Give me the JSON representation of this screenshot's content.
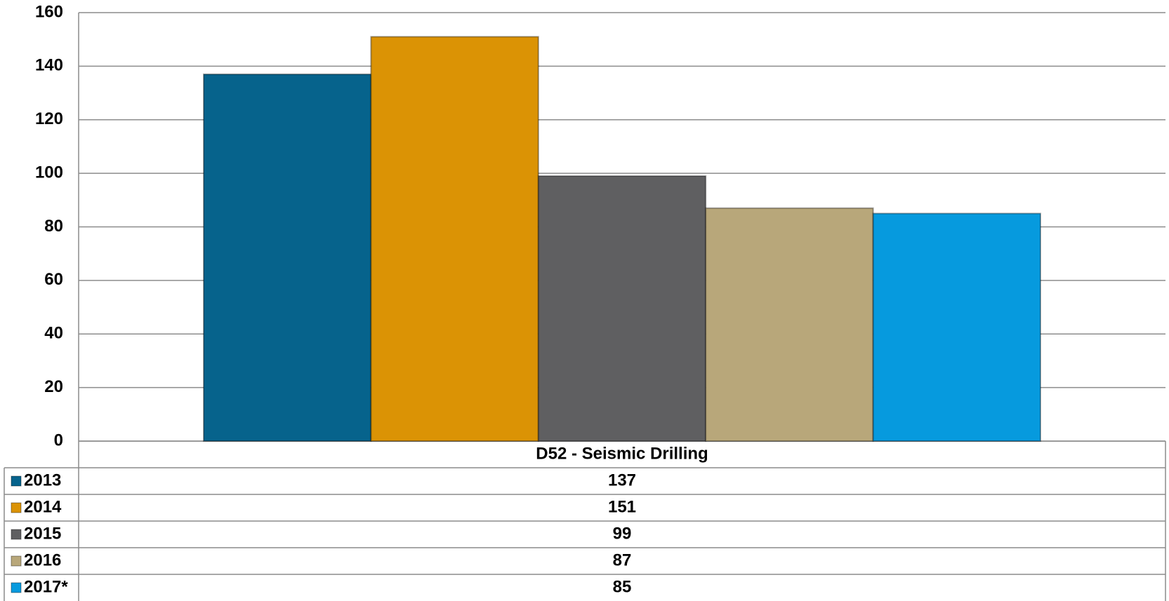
{
  "chart_data": {
    "type": "bar",
    "categories": [
      "D52 - Seismic Drilling"
    ],
    "series": [
      {
        "name": "2013",
        "color": "#06638c",
        "values": [
          137
        ]
      },
      {
        "name": "2014",
        "color": "#db9305",
        "values": [
          151
        ]
      },
      {
        "name": "2015",
        "color": "#5f5f61",
        "values": [
          99
        ]
      },
      {
        "name": "2016",
        "color": "#b8a77a",
        "values": [
          87
        ]
      },
      {
        "name": "2017*",
        "color": "#069ade",
        "values": [
          85
        ]
      }
    ],
    "ylim": [
      0,
      160
    ],
    "yticks": [
      0,
      20,
      40,
      60,
      80,
      100,
      120,
      140,
      160
    ],
    "grid": true
  }
}
